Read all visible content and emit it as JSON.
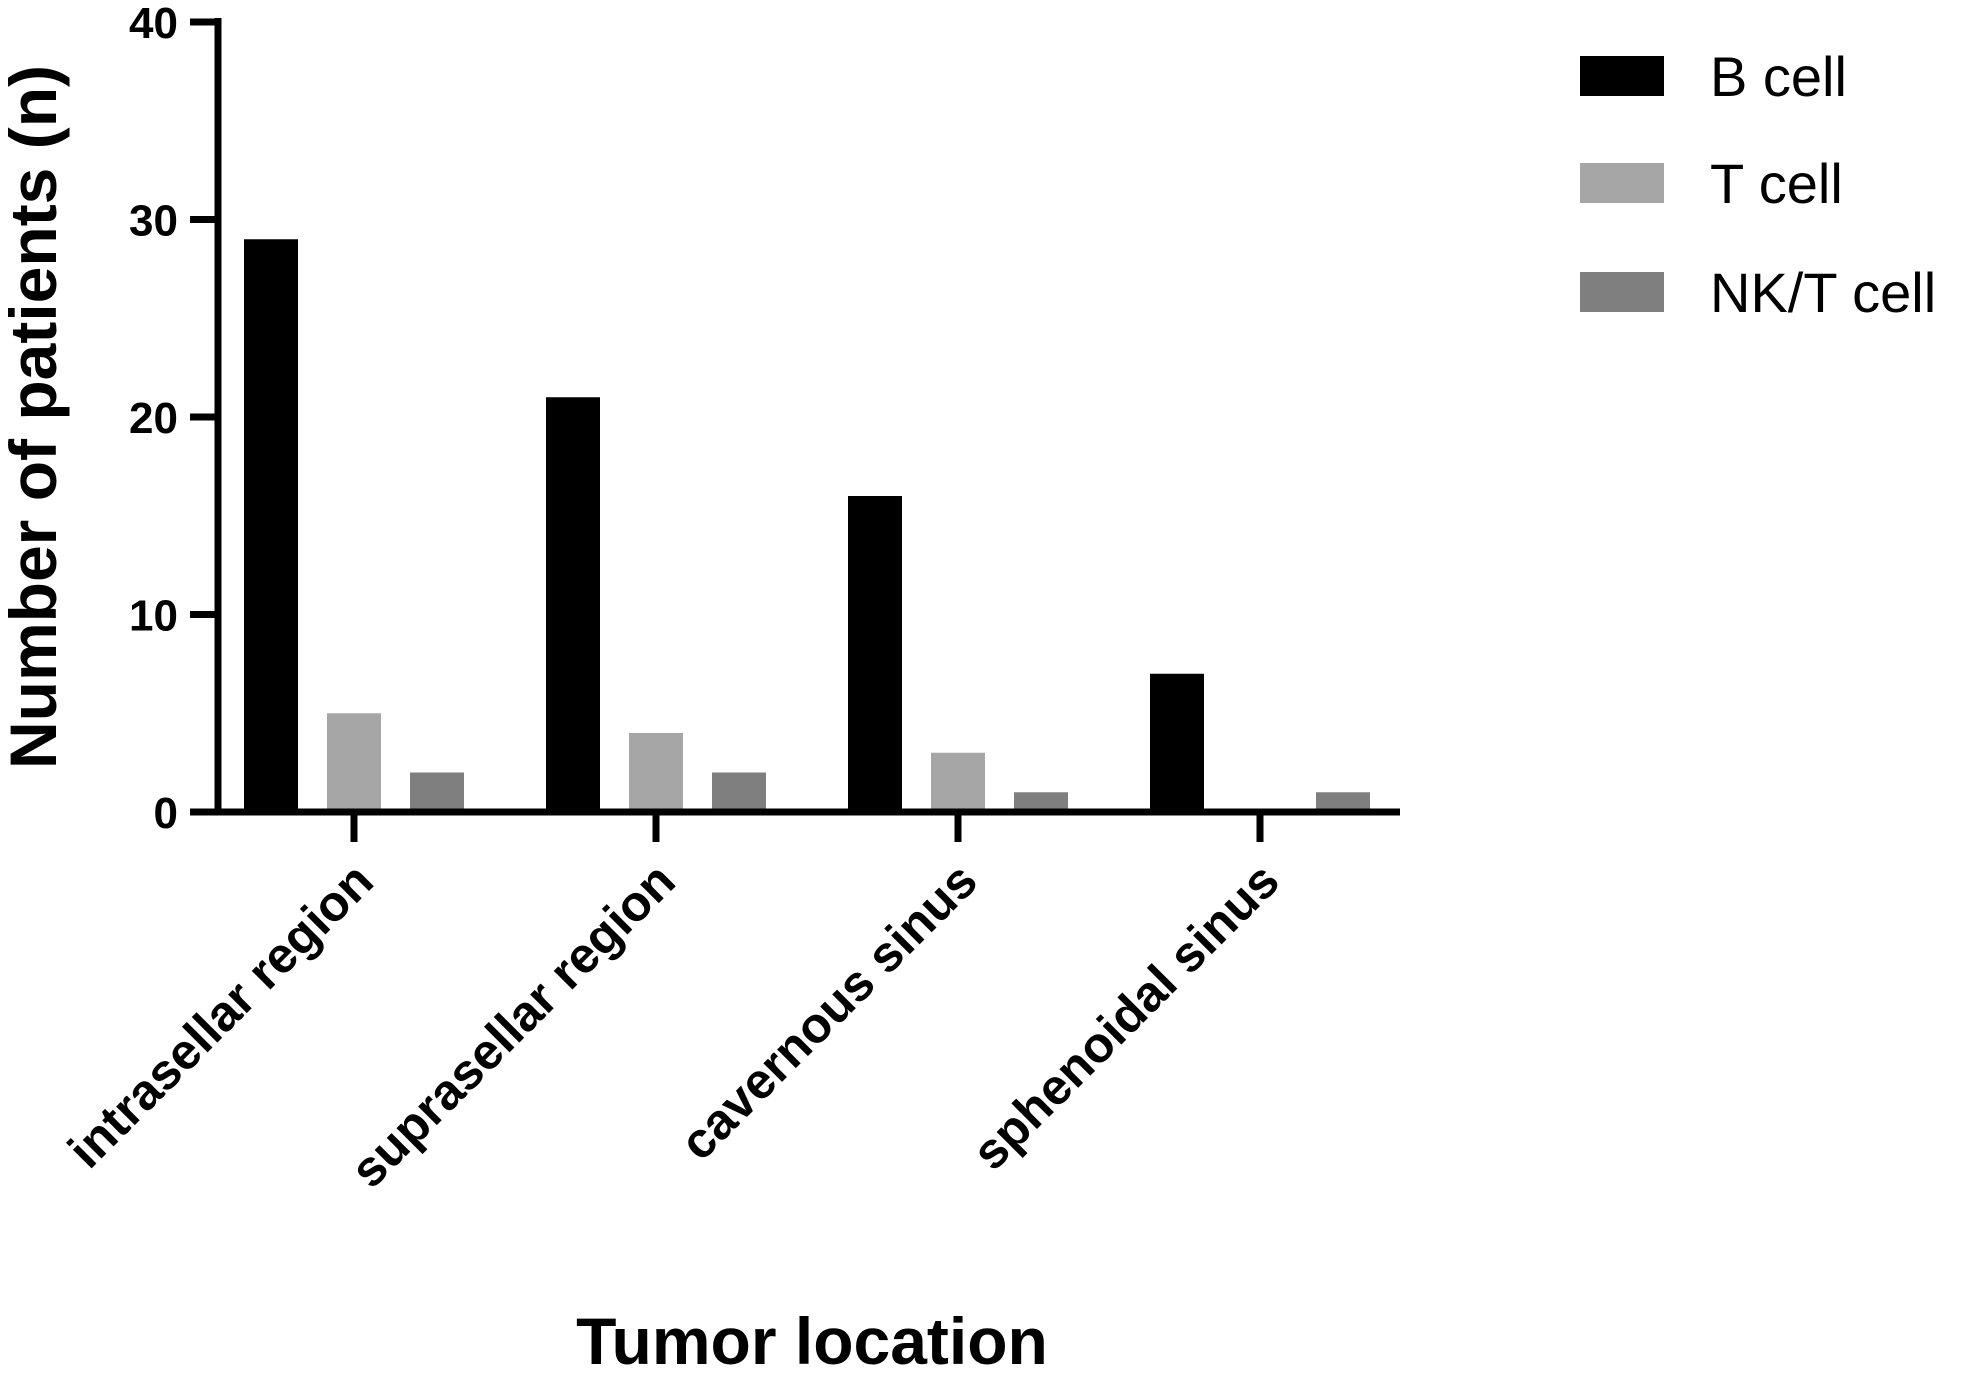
{
  "chart_data": {
    "type": "bar",
    "title": "",
    "xlabel": "Tumor location",
    "ylabel": "Number of patients (n)",
    "ylim": [
      0,
      40
    ],
    "yticks": [
      0,
      10,
      20,
      30,
      40
    ],
    "categories": [
      "intrasellar region",
      "suprasellar region",
      "cavernous sinus",
      "sphenoidal sinus"
    ],
    "series": [
      {
        "name": "B cell",
        "values": [
          29,
          21,
          16,
          7
        ],
        "color": "#000000"
      },
      {
        "name": "T cell",
        "values": [
          5,
          4,
          3,
          0
        ],
        "color": "#a6a6a7"
      },
      {
        "name": "NK/T cell",
        "values": [
          2,
          2,
          1,
          1
        ],
        "color": "#7f7f80"
      }
    ],
    "legend_position": "top-right",
    "grid": false
  }
}
